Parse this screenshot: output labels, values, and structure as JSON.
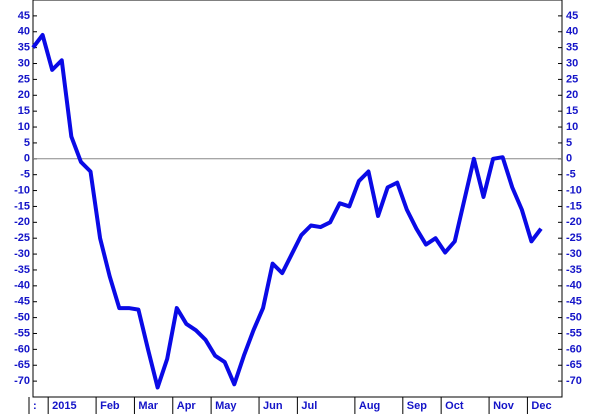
{
  "chart_data": {
    "type": "line",
    "categories": [
      ":",
      null,
      "2015",
      null,
      null,
      null,
      null,
      "Feb",
      null,
      null,
      null,
      "Mar",
      null,
      null,
      null,
      "Apr",
      null,
      null,
      null,
      "May",
      null,
      null,
      null,
      null,
      "Jun",
      null,
      null,
      null,
      "Jul",
      null,
      null,
      null,
      null,
      null,
      "Aug",
      null,
      null,
      null,
      null,
      "Sep",
      null,
      null,
      null,
      "Oct",
      null,
      null,
      null,
      null,
      "Nov",
      null,
      null,
      null,
      "Dec",
      null
    ],
    "series": [
      {
        "color": "#0a0ae6",
        "values": [
          35,
          39,
          28,
          31,
          7,
          -1,
          -4,
          -25,
          -37,
          -47,
          -47,
          -47.5,
          -60,
          -72,
          -63,
          -47,
          -52,
          -54,
          -57,
          -62,
          -64,
          -71,
          -62,
          -54,
          -47,
          -33,
          -36,
          -30,
          -24,
          -21,
          -21.5,
          -20,
          -14,
          -15,
          -7,
          -4,
          -18,
          -9,
          -7.5,
          -16,
          -22,
          -27,
          -25,
          -29.5,
          -26,
          -13,
          0,
          -12,
          0,
          0.5,
          -9,
          -16,
          -26,
          -22
        ]
      }
    ],
    "ylim": [
      -75,
      50
    ],
    "yticks": [
      -70,
      -65,
      -60,
      -55,
      -50,
      -45,
      -40,
      -35,
      -30,
      -25,
      -20,
      -15,
      -10,
      -5,
      0,
      5,
      10,
      15,
      20,
      25,
      30,
      35,
      40,
      45
    ],
    "zero_line": true
  }
}
